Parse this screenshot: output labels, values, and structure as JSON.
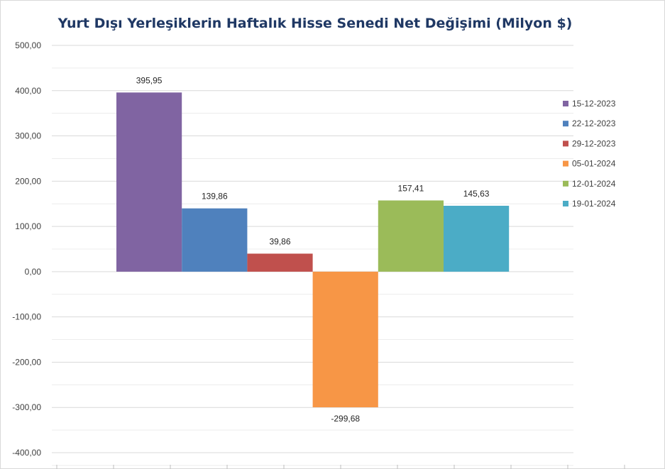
{
  "chart_data": {
    "type": "bar",
    "title": "Yurt Dışı Yerleşiklerin Haftalık Hisse Senedi Net Değişimi (Milyon $)",
    "xlabel": "",
    "ylabel": "",
    "ylim": [
      -400,
      500
    ],
    "ytick_step": 100,
    "ytick_labels": [
      "500,00",
      "400,00",
      "300,00",
      "200,00",
      "100,00",
      "0,00",
      "-100,00",
      "-200,00",
      "-300,00",
      "-400,00"
    ],
    "grid": true,
    "legend_position": "right",
    "series": [
      {
        "name": "15-12-2023",
        "value": 395.95,
        "label": "395,95",
        "color": "#8064a2"
      },
      {
        "name": "22-12-2023",
        "value": 139.86,
        "label": "139,86",
        "color": "#4f81bd"
      },
      {
        "name": "29-12-2023",
        "value": 39.86,
        "label": "39,86",
        "color": "#c0504d"
      },
      {
        "name": "05-01-2024",
        "value": -299.68,
        "label": "-299,68",
        "color": "#f79646"
      },
      {
        "name": "12-01-2024",
        "value": 157.41,
        "label": "157,41",
        "color": "#9bbb59"
      },
      {
        "name": "19-01-2024",
        "value": 145.63,
        "label": "145,63",
        "color": "#4bacc6"
      }
    ]
  }
}
